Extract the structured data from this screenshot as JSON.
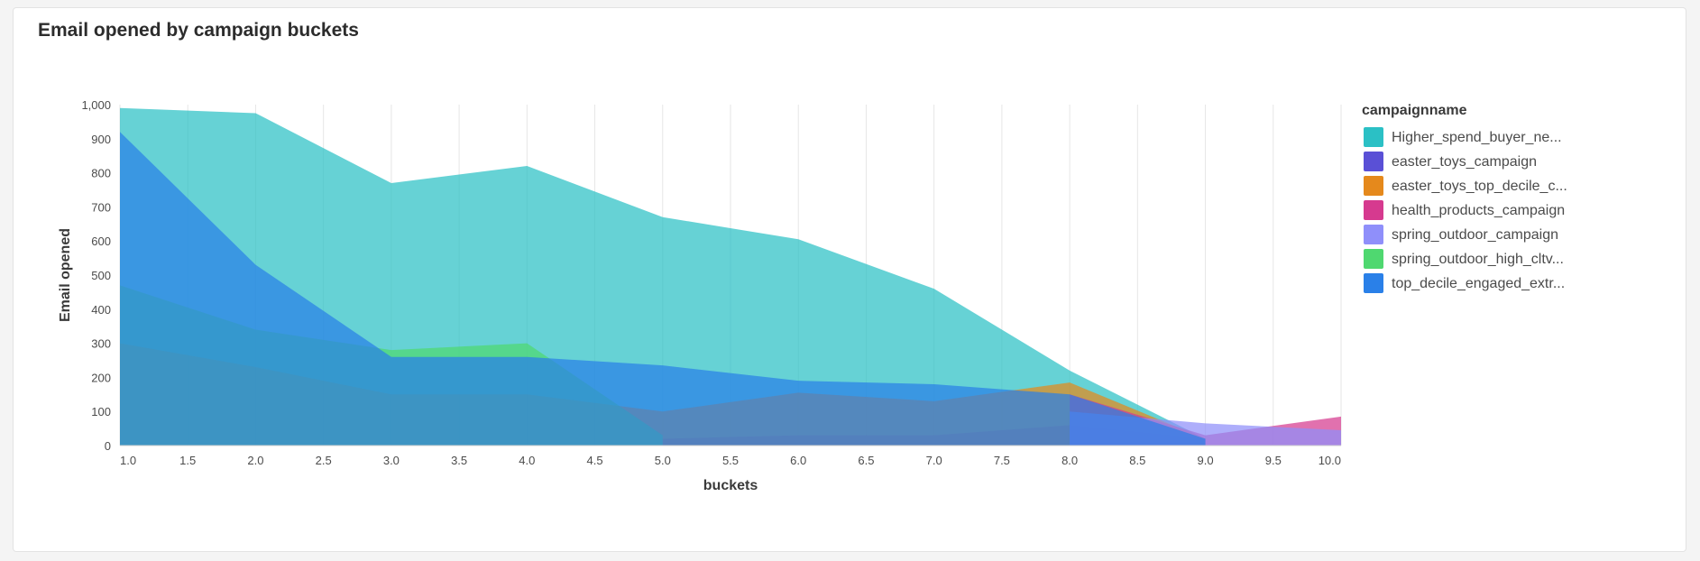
{
  "card": {
    "title": "Email opened by campaign buckets"
  },
  "chart_data": {
    "type": "area",
    "title": "Email opened by campaign buckets",
    "xlabel": "buckets",
    "ylabel": "Email opened",
    "xlim": [
      1.0,
      10.0
    ],
    "ylim": [
      0,
      1000
    ],
    "x_ticks": [
      "1.0",
      "1.5",
      "2.0",
      "2.5",
      "3.0",
      "3.5",
      "4.0",
      "4.5",
      "5.0",
      "5.5",
      "6.0",
      "6.5",
      "7.0",
      "7.5",
      "8.0",
      "8.5",
      "9.0",
      "9.5",
      "10.0"
    ],
    "y_ticks": [
      "0",
      "100",
      "200",
      "300",
      "400",
      "500",
      "600",
      "700",
      "800",
      "900",
      "1,000"
    ],
    "grid": "vertical",
    "stacked": false,
    "legend": {
      "title": "campaignname",
      "position": "right"
    },
    "series": [
      {
        "name": "Higher_spend_buyer_ne...",
        "color": "#2bc0c5",
        "points": [
          [
            1,
            990
          ],
          [
            2,
            975
          ],
          [
            3,
            770
          ],
          [
            4,
            820
          ],
          [
            5,
            670
          ],
          [
            6,
            605
          ],
          [
            7,
            460
          ],
          [
            8,
            220
          ],
          [
            9,
            20
          ]
        ]
      },
      {
        "name": "easter_toys_campaign",
        "color": "#5a50d6",
        "points": [
          [
            5,
            20
          ],
          [
            6,
            30
          ],
          [
            7,
            30
          ],
          [
            8,
            60
          ],
          [
            9,
            20
          ]
        ]
      },
      {
        "name": "easter_toys_top_decile_c...",
        "color": "#e5891c",
        "points": [
          [
            1,
            300
          ],
          [
            2,
            230
          ],
          [
            3,
            150
          ],
          [
            4,
            150
          ],
          [
            5,
            100
          ],
          [
            6,
            155
          ],
          [
            7,
            130
          ],
          [
            8,
            185
          ],
          [
            9,
            20
          ]
        ]
      },
      {
        "name": "health_products_campaign",
        "color": "#d63a8f",
        "points": [
          [
            8,
            150
          ],
          [
            9,
            30
          ],
          [
            10,
            85
          ]
        ]
      },
      {
        "name": "spring_outdoor_campaign",
        "color": "#8f8ffa",
        "points": [
          [
            8,
            100
          ],
          [
            9,
            65
          ],
          [
            10,
            45
          ]
        ]
      },
      {
        "name": "spring_outdoor_high_cltv...",
        "color": "#4fd870",
        "points": [
          [
            1,
            470
          ],
          [
            2,
            340
          ],
          [
            3,
            280
          ],
          [
            4,
            300
          ],
          [
            5,
            30
          ]
        ]
      },
      {
        "name": "top_decile_engaged_extr...",
        "color": "#2a80e8",
        "points": [
          [
            1,
            920
          ],
          [
            2,
            530
          ],
          [
            3,
            260
          ],
          [
            4,
            260
          ],
          [
            5,
            235
          ],
          [
            6,
            190
          ],
          [
            7,
            180
          ],
          [
            8,
            150
          ],
          [
            9,
            20
          ]
        ]
      }
    ]
  }
}
